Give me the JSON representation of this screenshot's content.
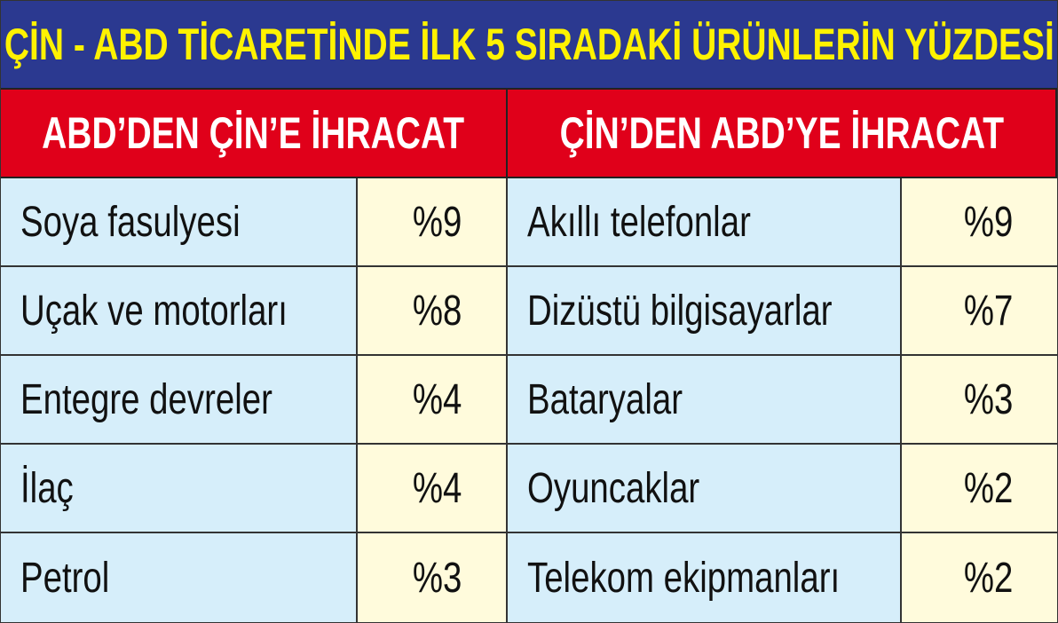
{
  "chart_data": {
    "type": "table",
    "title": "ÇİN - ABD TİCARETİNDE İLK 5 SIRADAKİ ÜRÜNLERİN YÜZDESİ",
    "columns": [
      "ABD’DEN ÇİN’E İHRACAT",
      "ÇİN’DEN ABD’YE İHRACAT"
    ],
    "left": [
      {
        "label": "Soya fasulyesi",
        "value": "%9"
      },
      {
        "label": "Uçak ve motorları",
        "value": "%8"
      },
      {
        "label": "Entegre devreler",
        "value": "%4"
      },
      {
        "label": "İlaç",
        "value": "%4"
      },
      {
        "label": "Petrol",
        "value": "%3"
      }
    ],
    "right": [
      {
        "label": "Akıllı telefonlar",
        "value": "%9"
      },
      {
        "label": "Dizüstü bilgisayarlar",
        "value": "%7"
      },
      {
        "label": "Bataryalar",
        "value": "%3"
      },
      {
        "label": "Oyuncaklar",
        "value": "%2"
      },
      {
        "label": "Telekom ekipmanları",
        "value": "%2"
      }
    ],
    "colors": {
      "title_bg": "#2b3990",
      "title_text": "#fff200",
      "header_bg": "#e0001a",
      "label_bg": "#d6eefa",
      "value_bg": "#fffbdc"
    }
  }
}
